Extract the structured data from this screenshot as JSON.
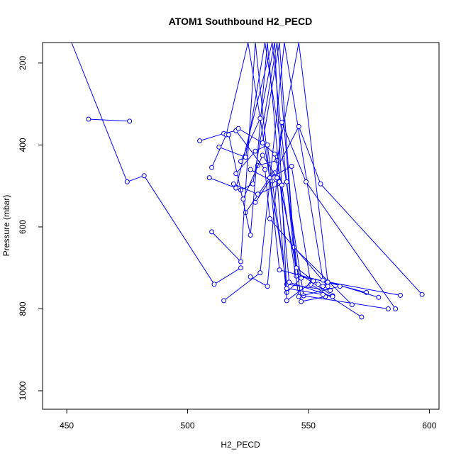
{
  "chart_data": {
    "type": "line",
    "title": "ATOM1 Southbound H2_PECD",
    "xlabel": "H2_PECD",
    "ylabel": "Pressure (mbar)",
    "xlim": [
      440,
      604
    ],
    "ylim": [
      1045,
      150
    ],
    "y_reversed": true,
    "x_ticks": [
      450,
      500,
      550,
      600
    ],
    "y_ticks": [
      200,
      400,
      600,
      800,
      1000
    ],
    "grid": false,
    "legend": "none",
    "series_color": "#0000ff",
    "marker": "open-circle",
    "series": [
      {
        "x": [
          452,
          475,
          482,
          511,
          522
        ],
        "y": [
          150,
          490,
          475,
          740,
          700
        ]
      },
      {
        "x": [
          459,
          476
        ],
        "y": [
          337,
          342
        ]
      },
      {
        "x": [
          505,
          515,
          520,
          532,
          534,
          558
        ],
        "y": [
          390,
          372,
          365,
          460,
          580,
          745
        ]
      },
      {
        "x": [
          510,
          516,
          525,
          541,
          559
        ],
        "y": [
          455,
          375,
          150,
          740,
          755
        ]
      },
      {
        "x": [
          509,
          520,
          535,
          545,
          588
        ],
        "y": [
          480,
          505,
          150,
          720,
          767
        ]
      },
      {
        "x": [
          522,
          527,
          537,
          545,
          560
        ],
        "y": [
          510,
          495,
          150,
          710,
          768
        ]
      },
      {
        "x": [
          513,
          524,
          532,
          548,
          583
        ],
        "y": [
          405,
          430,
          150,
          768,
          800
        ]
      },
      {
        "x": [
          510,
          522,
          528,
          538,
          574
        ],
        "y": [
          612,
          685,
          150,
          705,
          760
        ]
      },
      {
        "x": [
          515,
          530,
          540,
          556,
          579
        ],
        "y": [
          780,
          712,
          150,
          730,
          772
        ]
      },
      {
        "x": [
          526,
          533,
          539,
          549,
          586
        ],
        "y": [
          722,
          745,
          345,
          490,
          800
        ]
      },
      {
        "x": [
          528,
          536,
          546,
          555,
          597
        ],
        "y": [
          540,
          468,
          355,
          495,
          765
        ]
      },
      {
        "x": [
          521,
          531,
          538,
          544,
          568
        ],
        "y": [
          360,
          395,
          150,
          650,
          790
        ]
      },
      {
        "x": [
          524,
          534,
          543,
          551,
          572
        ],
        "y": [
          565,
          480,
          452,
          740,
          820
        ]
      },
      {
        "x": [
          519,
          529,
          541,
          547,
          557
        ],
        "y": [
          495,
          520,
          490,
          782,
          770
        ]
      },
      {
        "x": [
          529,
          537,
          546,
          558,
          556
        ],
        "y": [
          450,
          438,
          150,
          735,
          745
        ]
      },
      {
        "x": [
          517,
          526,
          533,
          542,
          560
        ],
        "y": [
          375,
          620,
          150,
          735,
          770
        ]
      },
      {
        "x": [
          522,
          530,
          536,
          541,
          547
        ],
        "y": [
          440,
          335,
          150,
          760,
          725
        ]
      },
      {
        "x": [
          526,
          535,
          538,
          545,
          554
        ],
        "y": [
          460,
          488,
          490,
          700,
          740
        ]
      },
      {
        "x": [
          523,
          531,
          537,
          541,
          552
        ],
        "y": [
          532,
          425,
          480,
          780,
          732
        ]
      },
      {
        "x": [
          531,
          536,
          539,
          546,
          563
        ],
        "y": [
          395,
          422,
          498,
          770,
          745
        ]
      },
      {
        "x": [
          520,
          528,
          533,
          541,
          556
        ],
        "y": [
          470,
          415,
          400,
          750,
          765
        ]
      }
    ]
  }
}
